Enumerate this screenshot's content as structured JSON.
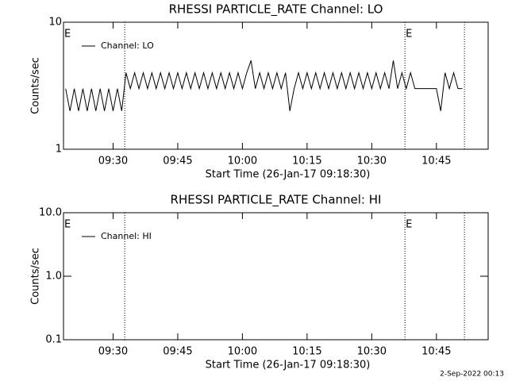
{
  "chart_data": [
    {
      "type": "line",
      "title": "RHESSI PARTICLE_RATE Channel: LO",
      "x_label": "Start Time (26-Jan-17 09:18:30)",
      "y_label": "Counts/sec",
      "log_y": true,
      "legend": "upper left",
      "xlim": [
        18.5,
        117
      ],
      "ylim": [
        1,
        10
      ],
      "xticks": [
        {
          "value": 30,
          "label": "09:30"
        },
        {
          "value": 45,
          "label": "09:45"
        },
        {
          "value": 60,
          "label": "10:00"
        },
        {
          "value": 75,
          "label": "10:15"
        },
        {
          "value": 90,
          "label": "10:30"
        },
        {
          "value": 105,
          "label": "10:45"
        }
      ],
      "yticks": [
        1,
        10
      ],
      "vlines": [
        32.7,
        97.7,
        111.5
      ],
      "annotations": [
        {
          "text": "E",
          "x": 18.5
        },
        {
          "text": "E",
          "x": 97.7
        }
      ],
      "series": [
        {
          "name": "Channel: LO",
          "color": "#000000",
          "x": [
            19,
            20,
            21,
            22,
            23,
            24,
            25,
            26,
            27,
            28,
            29,
            30,
            31,
            32,
            33,
            34,
            35,
            36,
            37,
            38,
            39,
            40,
            41,
            42,
            43,
            44,
            45,
            46,
            47,
            48,
            49,
            50,
            51,
            52,
            53,
            54,
            55,
            56,
            57,
            58,
            59,
            60,
            61,
            62,
            63,
            64,
            65,
            66,
            67,
            68,
            69,
            70,
            71,
            72,
            73,
            74,
            75,
            76,
            77,
            78,
            79,
            80,
            81,
            82,
            83,
            84,
            85,
            86,
            87,
            88,
            89,
            90,
            91,
            92,
            93,
            94,
            95,
            96,
            97,
            98,
            99,
            100,
            101,
            102,
            103,
            104,
            105,
            106,
            107,
            108,
            109,
            110,
            111
          ],
          "values": [
            3,
            2,
            3,
            2,
            3,
            2,
            3,
            2,
            3,
            2,
            3,
            2,
            3,
            2,
            4,
            3,
            4,
            3,
            4,
            3,
            4,
            3,
            4,
            3,
            4,
            3,
            4,
            3,
            4,
            3,
            4,
            3,
            4,
            3,
            4,
            3,
            4,
            3,
            4,
            3,
            4,
            3,
            4,
            5,
            3,
            4,
            3,
            4,
            3,
            4,
            3,
            4,
            2,
            3,
            4,
            3,
            4,
            3,
            4,
            3,
            4,
            3,
            4,
            3,
            4,
            3,
            4,
            3,
            4,
            3,
            4,
            3,
            4,
            3,
            4,
            3,
            5,
            3,
            4,
            3,
            4,
            3,
            3,
            3,
            3,
            3,
            3,
            2,
            4,
            3,
            4,
            3,
            3
          ]
        }
      ]
    },
    {
      "type": "line",
      "title": "RHESSI PARTICLE_RATE Channel: HI",
      "x_label": "Start Time (26-Jan-17 09:18:30)",
      "y_label": "Counts/sec",
      "log_y": true,
      "legend": "upper left",
      "xlim": [
        18.5,
        117
      ],
      "ylim": [
        0.1,
        10
      ],
      "xticks": [
        {
          "value": 30,
          "label": "09:30"
        },
        {
          "value": 45,
          "label": "09:45"
        },
        {
          "value": 60,
          "label": "10:00"
        },
        {
          "value": 75,
          "label": "10:15"
        },
        {
          "value": 90,
          "label": "10:30"
        },
        {
          "value": 105,
          "label": "10:45"
        }
      ],
      "yticks": [
        0.1,
        {
          "value": 1,
          "label": "1.0"
        },
        {
          "value": 10,
          "label": "10.0"
        }
      ],
      "vlines": [
        32.7,
        97.7,
        111.5
      ],
      "annotations": [
        {
          "text": "E",
          "x": 18.5
        },
        {
          "text": "E",
          "x": 97.7
        }
      ],
      "series": [
        {
          "name": "Channel: HI",
          "color": "#000000",
          "x": [],
          "values": []
        }
      ]
    }
  ],
  "timestamp": "2-Sep-2022 00:13"
}
